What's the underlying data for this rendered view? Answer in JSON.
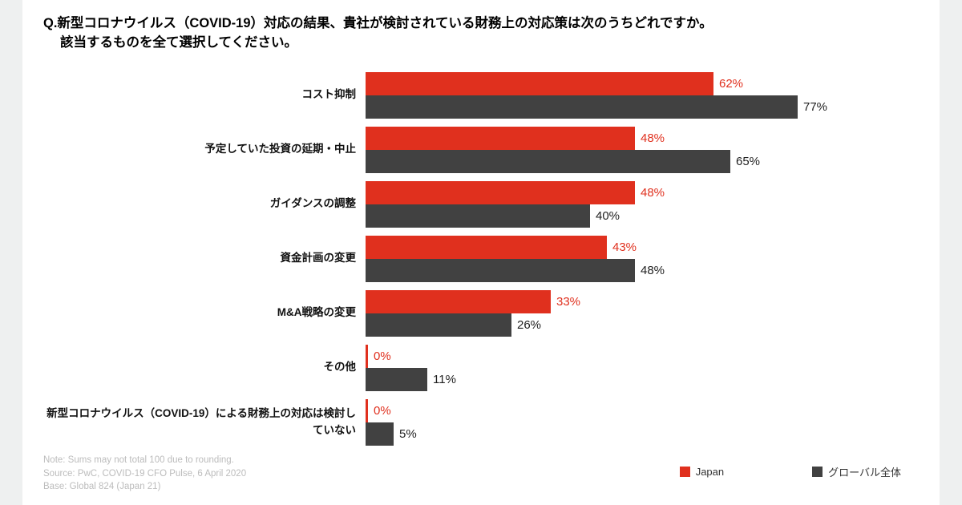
{
  "page": {
    "title_line1": "Q.新型コロナウイルス（COVID-19）対応の結果、貴社が検討されている財務上の対応策は次のうちどれですか。",
    "title_line2": "該当するものを全て選択してください。"
  },
  "chart_data": {
    "type": "bar",
    "orientation": "horizontal",
    "title": "新型コロナウイルス（COVID-19）対応の結果、検討されている財務上の対応策",
    "categories": [
      "コスト抑制",
      "予定していた投資の延期・中止",
      "ガイダンスの調整",
      "資金計画の変更",
      "M&A戦略の変更",
      "その他",
      "新型コロナウイルス（COVID-19）による財務上の対応は検討していない"
    ],
    "series": [
      {
        "name": "Japan",
        "color": "#e0301e",
        "label_color": "#e0301e",
        "values": [
          62,
          48,
          48,
          43,
          33,
          0,
          0
        ]
      },
      {
        "name": "グローバル全体",
        "color": "#414141",
        "label_color": "#1f1f1f",
        "values": [
          77,
          65,
          40,
          48,
          26,
          11,
          5
        ]
      }
    ],
    "value_suffix": "%",
    "xlim": [
      0,
      100
    ],
    "grid": false,
    "legend_position": "bottom-right"
  },
  "footer": {
    "notes": [
      "Note: Sums may not total 100 due to rounding.",
      "Source: PwC, COVID-19 CFO Pulse, 6 April 2020",
      "Base: Global 824 (Japan 21)"
    ]
  }
}
